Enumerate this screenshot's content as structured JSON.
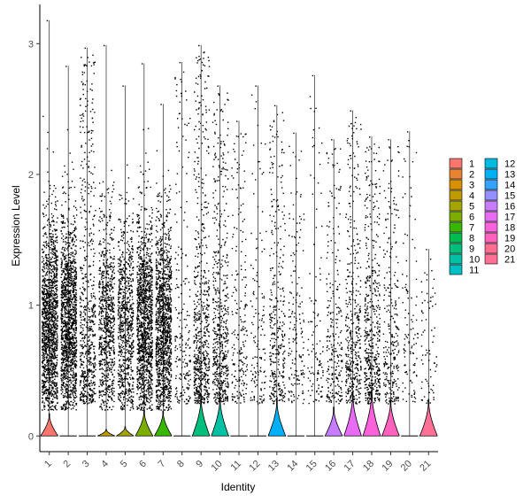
{
  "chart_data": {
    "type": "violin",
    "xlabel": "Identity",
    "ylabel": "Expression Level",
    "ylim": [
      -0.12,
      3.3
    ],
    "yticks": [
      0,
      1,
      2,
      3
    ],
    "grid": false,
    "legend_position": "right",
    "categories": [
      "1",
      "2",
      "3",
      "4",
      "5",
      "6",
      "7",
      "8",
      "9",
      "10",
      "11",
      "12",
      "13",
      "14",
      "15",
      "16",
      "17",
      "18",
      "19",
      "20",
      "21"
    ],
    "colors": [
      "#F8766D",
      "#EA8331",
      "#D89000",
      "#C09B00",
      "#A3A500",
      "#7CAE00",
      "#39B600",
      "#00BB4E",
      "#00BF7D",
      "#00C1A3",
      "#00BFC4",
      "#00BAE0",
      "#00B0F6",
      "#35A2FF",
      "#9590FF",
      "#C77CFF",
      "#E76BF3",
      "#FA62DB",
      "#FF62BC",
      "#FF6C91",
      "#FF7096"
    ],
    "series": [
      {
        "name": "1",
        "max": 3.18,
        "violin_top": 0.17,
        "dot_density": 1.0
      },
      {
        "name": "2",
        "max": 2.83,
        "violin_top": 0.0,
        "dot_density": 1.0
      },
      {
        "name": "3",
        "max": 2.97,
        "violin_top": 0.0,
        "dot_density": 0.45
      },
      {
        "name": "4",
        "max": 2.99,
        "violin_top": 0.05,
        "dot_density": 0.55
      },
      {
        "name": "5",
        "max": 2.68,
        "violin_top": 0.07,
        "dot_density": 0.55
      },
      {
        "name": "6",
        "max": 2.85,
        "violin_top": 0.2,
        "dot_density": 0.9
      },
      {
        "name": "7",
        "max": 2.54,
        "violin_top": 0.19,
        "dot_density": 0.9
      },
      {
        "name": "8",
        "max": 2.86,
        "violin_top": 0.0,
        "dot_density": 0.15
      },
      {
        "name": "9",
        "max": 2.99,
        "violin_top": 0.3,
        "dot_density": 0.45
      },
      {
        "name": "10",
        "max": 2.68,
        "violin_top": 0.3,
        "dot_density": 0.4
      },
      {
        "name": "11",
        "max": 2.41,
        "violin_top": 0.0,
        "dot_density": 0.15
      },
      {
        "name": "12",
        "max": 2.68,
        "violin_top": 0.0,
        "dot_density": 0.1
      },
      {
        "name": "13",
        "max": 2.53,
        "violin_top": 0.28,
        "dot_density": 0.25
      },
      {
        "name": "14",
        "max": 2.32,
        "violin_top": 0.0,
        "dot_density": 0.12
      },
      {
        "name": "15",
        "max": 2.76,
        "violin_top": 0.0,
        "dot_density": 0.08
      },
      {
        "name": "16",
        "max": 2.27,
        "violin_top": 0.22,
        "dot_density": 0.18
      },
      {
        "name": "17",
        "max": 2.49,
        "violin_top": 0.33,
        "dot_density": 0.3
      },
      {
        "name": "18",
        "max": 2.29,
        "violin_top": 0.35,
        "dot_density": 0.35
      },
      {
        "name": "19",
        "max": 2.27,
        "violin_top": 0.28,
        "dot_density": 0.2
      },
      {
        "name": "20",
        "max": 2.33,
        "violin_top": 0.0,
        "dot_density": 0.08
      },
      {
        "name": "21",
        "max": 1.43,
        "violin_top": 0.28,
        "dot_density": 0.05
      }
    ]
  }
}
